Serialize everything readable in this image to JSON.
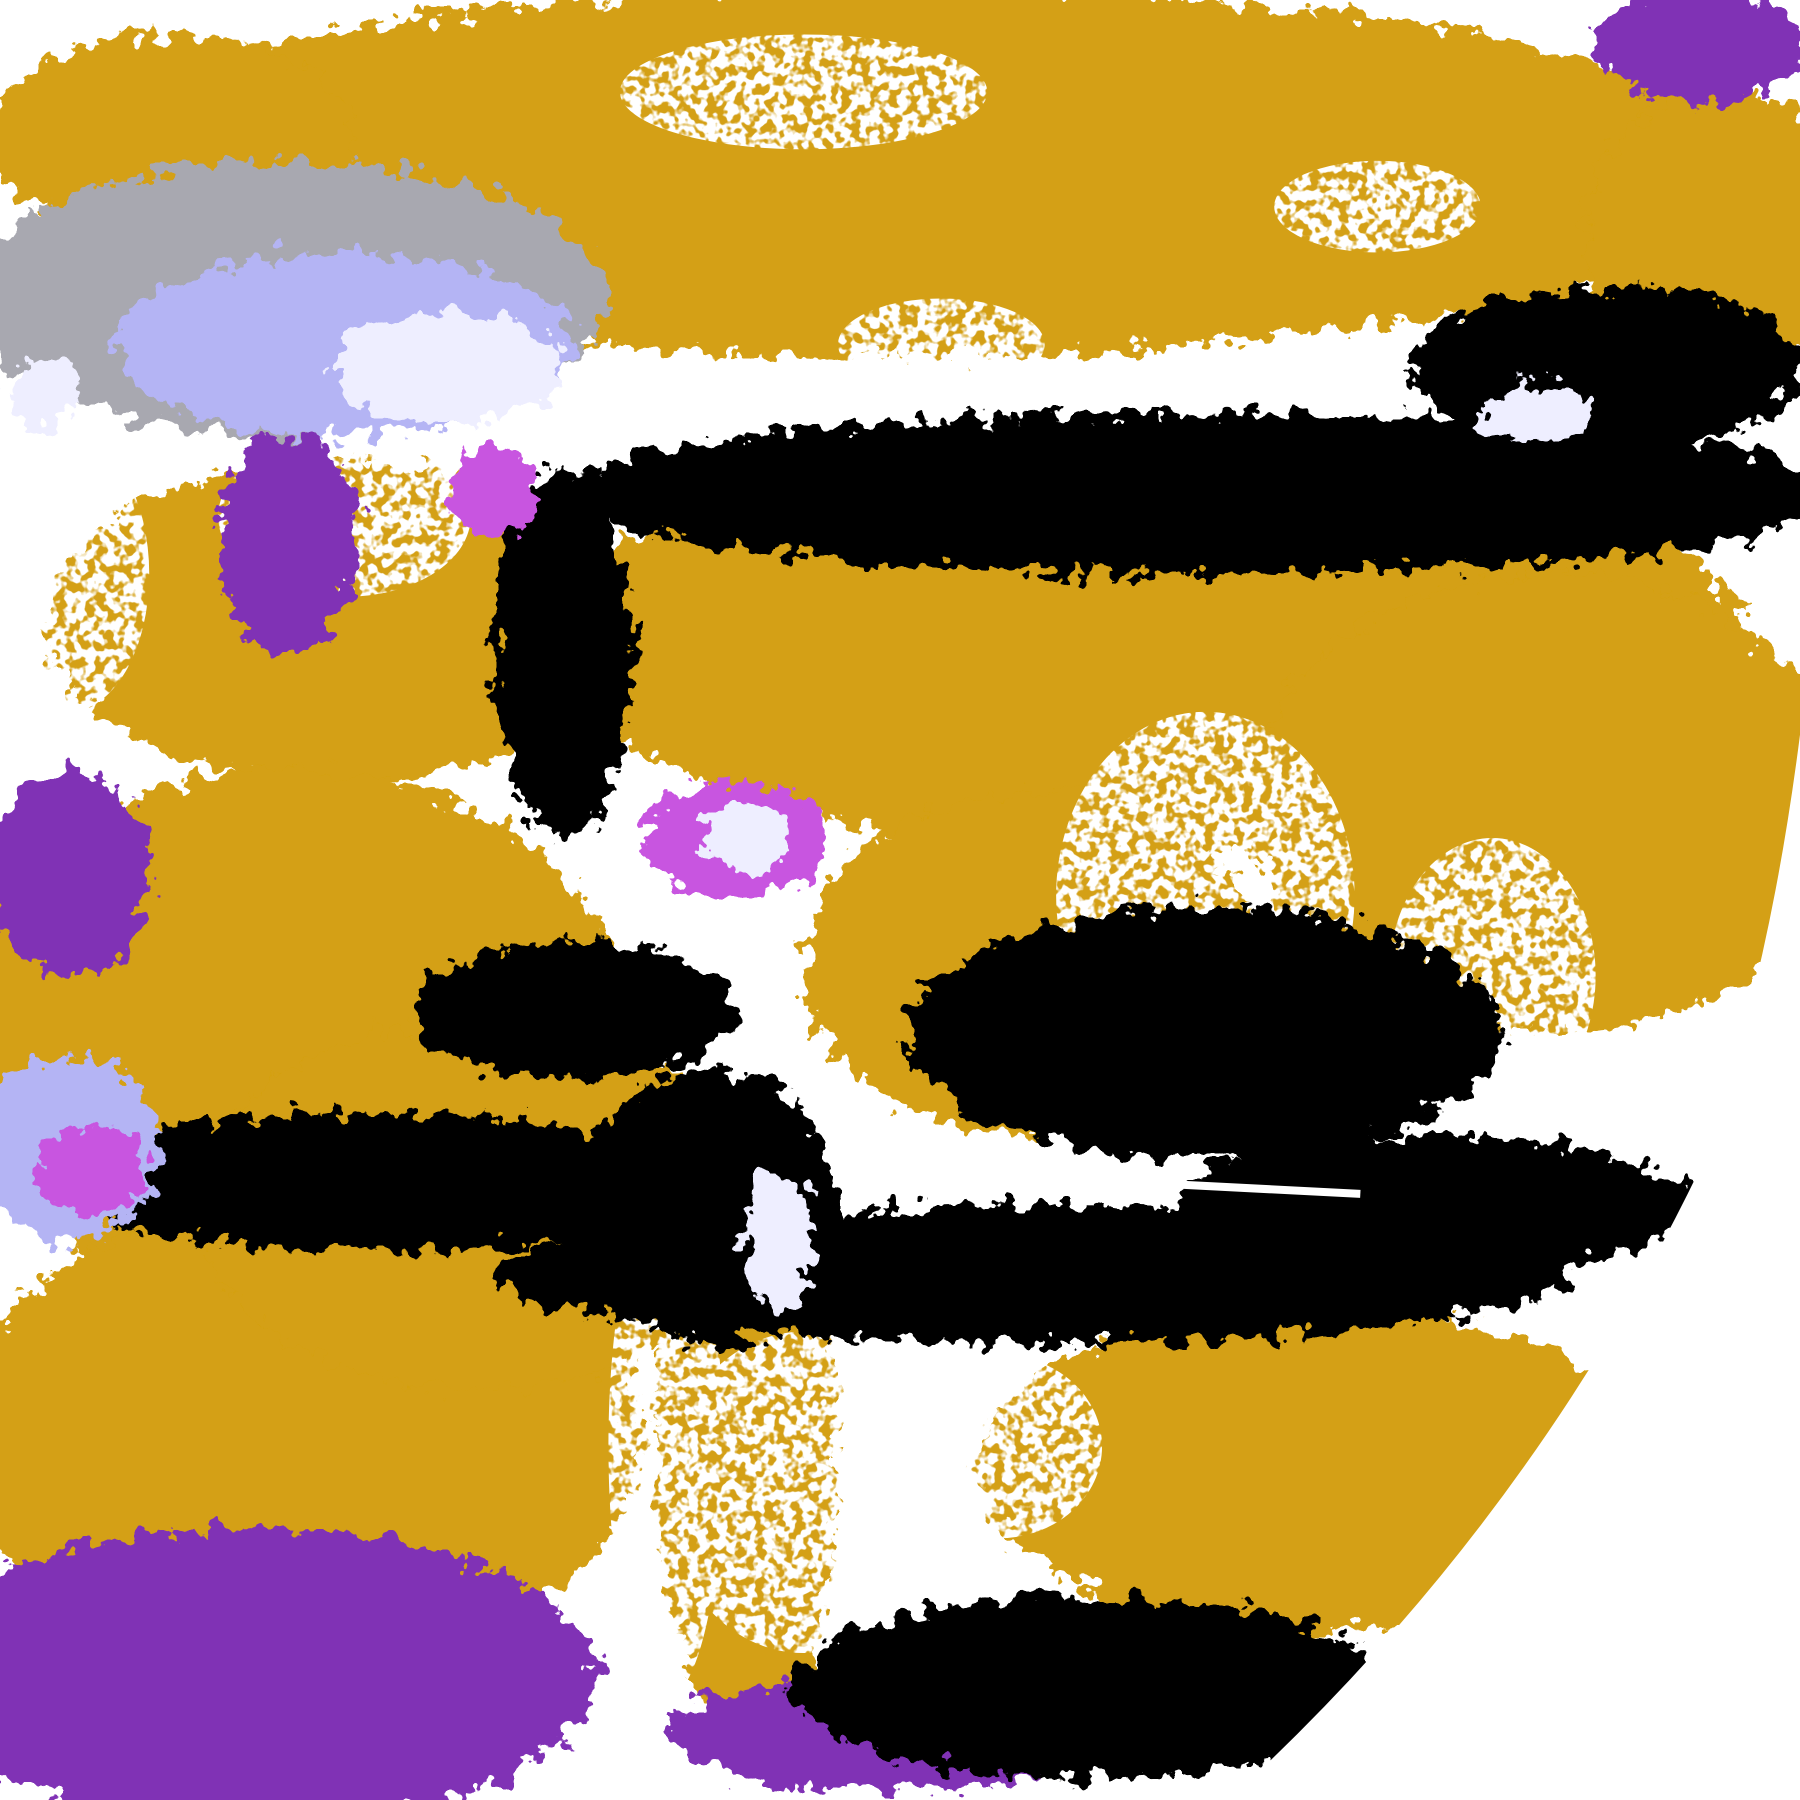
{
  "colors": {
    "background": "#ffffff",
    "gold": "#d4a012",
    "purple": "#8033b5",
    "magenta": "#c855e0",
    "lavender": "#b4b4f4",
    "gray": "#a8a8b0",
    "pale": "#eeeeff"
  }
}
